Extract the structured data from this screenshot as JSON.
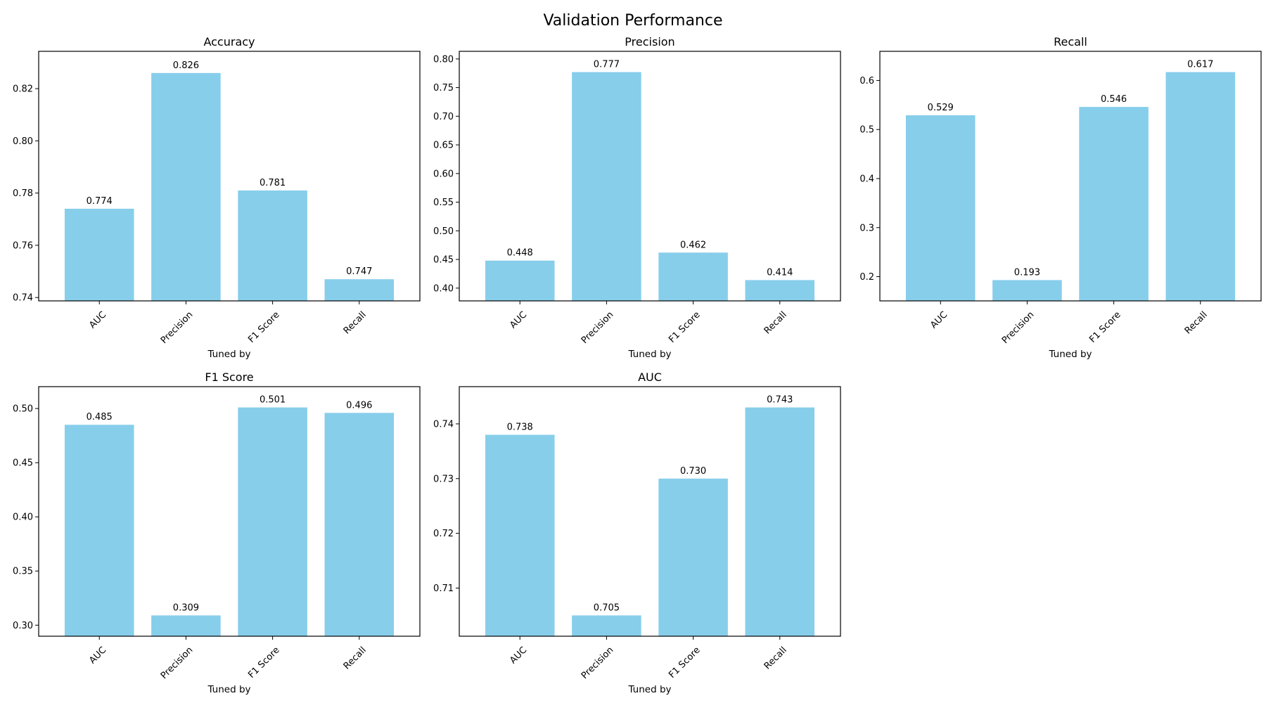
{
  "figure": {
    "title": "Validation Performance",
    "bar_color": "#87CEEB",
    "background": "#ffffff",
    "axis_color": "#000000"
  },
  "chart_data": [
    {
      "type": "bar",
      "title": "Accuracy",
      "xlabel": "Tuned by",
      "ylabel": "",
      "categories": [
        "AUC",
        "Precision",
        "F1 Score",
        "Recall"
      ],
      "values": [
        0.774,
        0.826,
        0.781,
        0.747
      ],
      "data_labels": [
        "0.774",
        "0.826",
        "0.781",
        "0.747"
      ],
      "ylim": [
        0.7387,
        0.8343
      ],
      "yticks": [
        0.74,
        0.76,
        0.78,
        0.8,
        0.82
      ],
      "ytick_labels": [
        "0.74",
        "0.76",
        "0.78",
        "0.80",
        "0.82"
      ],
      "grid": false
    },
    {
      "type": "bar",
      "title": "Precision",
      "xlabel": "Tuned by",
      "ylabel": "",
      "categories": [
        "AUC",
        "Precision",
        "F1 Score",
        "Recall"
      ],
      "values": [
        0.448,
        0.777,
        0.462,
        0.414
      ],
      "data_labels": [
        "0.448",
        "0.777",
        "0.462",
        "0.414"
      ],
      "ylim": [
        0.3777,
        0.8133
      ],
      "yticks": [
        0.4,
        0.45,
        0.5,
        0.55,
        0.6,
        0.65,
        0.7,
        0.75,
        0.8
      ],
      "ytick_labels": [
        "0.40",
        "0.45",
        "0.50",
        "0.55",
        "0.60",
        "0.65",
        "0.70",
        "0.75",
        "0.80"
      ],
      "grid": false
    },
    {
      "type": "bar",
      "title": "Recall",
      "xlabel": "Tuned by",
      "ylabel": "",
      "categories": [
        "AUC",
        "Precision",
        "F1 Score",
        "Recall"
      ],
      "values": [
        0.529,
        0.193,
        0.546,
        0.617
      ],
      "data_labels": [
        "0.529",
        "0.193",
        "0.546",
        "0.617"
      ],
      "ylim": [
        0.1506,
        0.6594
      ],
      "yticks": [
        0.2,
        0.3,
        0.4,
        0.5,
        0.6
      ],
      "ytick_labels": [
        "0.2",
        "0.3",
        "0.4",
        "0.5",
        "0.6"
      ],
      "grid": false
    },
    {
      "type": "bar",
      "title": "F1 Score",
      "xlabel": "Tuned by",
      "ylabel": "",
      "categories": [
        "AUC",
        "Precision",
        "F1 Score",
        "Recall"
      ],
      "values": [
        0.485,
        0.309,
        0.501,
        0.496
      ],
      "data_labels": [
        "0.485",
        "0.309",
        "0.501",
        "0.496"
      ],
      "ylim": [
        0.2898,
        0.5202
      ],
      "yticks": [
        0.3,
        0.35,
        0.4,
        0.45,
        0.5
      ],
      "ytick_labels": [
        "0.30",
        "0.35",
        "0.40",
        "0.45",
        "0.50"
      ],
      "grid": false
    },
    {
      "type": "bar",
      "title": "AUC",
      "xlabel": "Tuned by",
      "ylabel": "",
      "categories": [
        "AUC",
        "Precision",
        "F1 Score",
        "Recall"
      ],
      "values": [
        0.738,
        0.705,
        0.73,
        0.743
      ],
      "data_labels": [
        "0.738",
        "0.705",
        "0.730",
        "0.743"
      ],
      "ylim": [
        0.7012,
        0.7468
      ],
      "yticks": [
        0.71,
        0.72,
        0.73,
        0.74
      ],
      "ytick_labels": [
        "0.71",
        "0.72",
        "0.73",
        "0.74"
      ],
      "grid": false
    }
  ]
}
